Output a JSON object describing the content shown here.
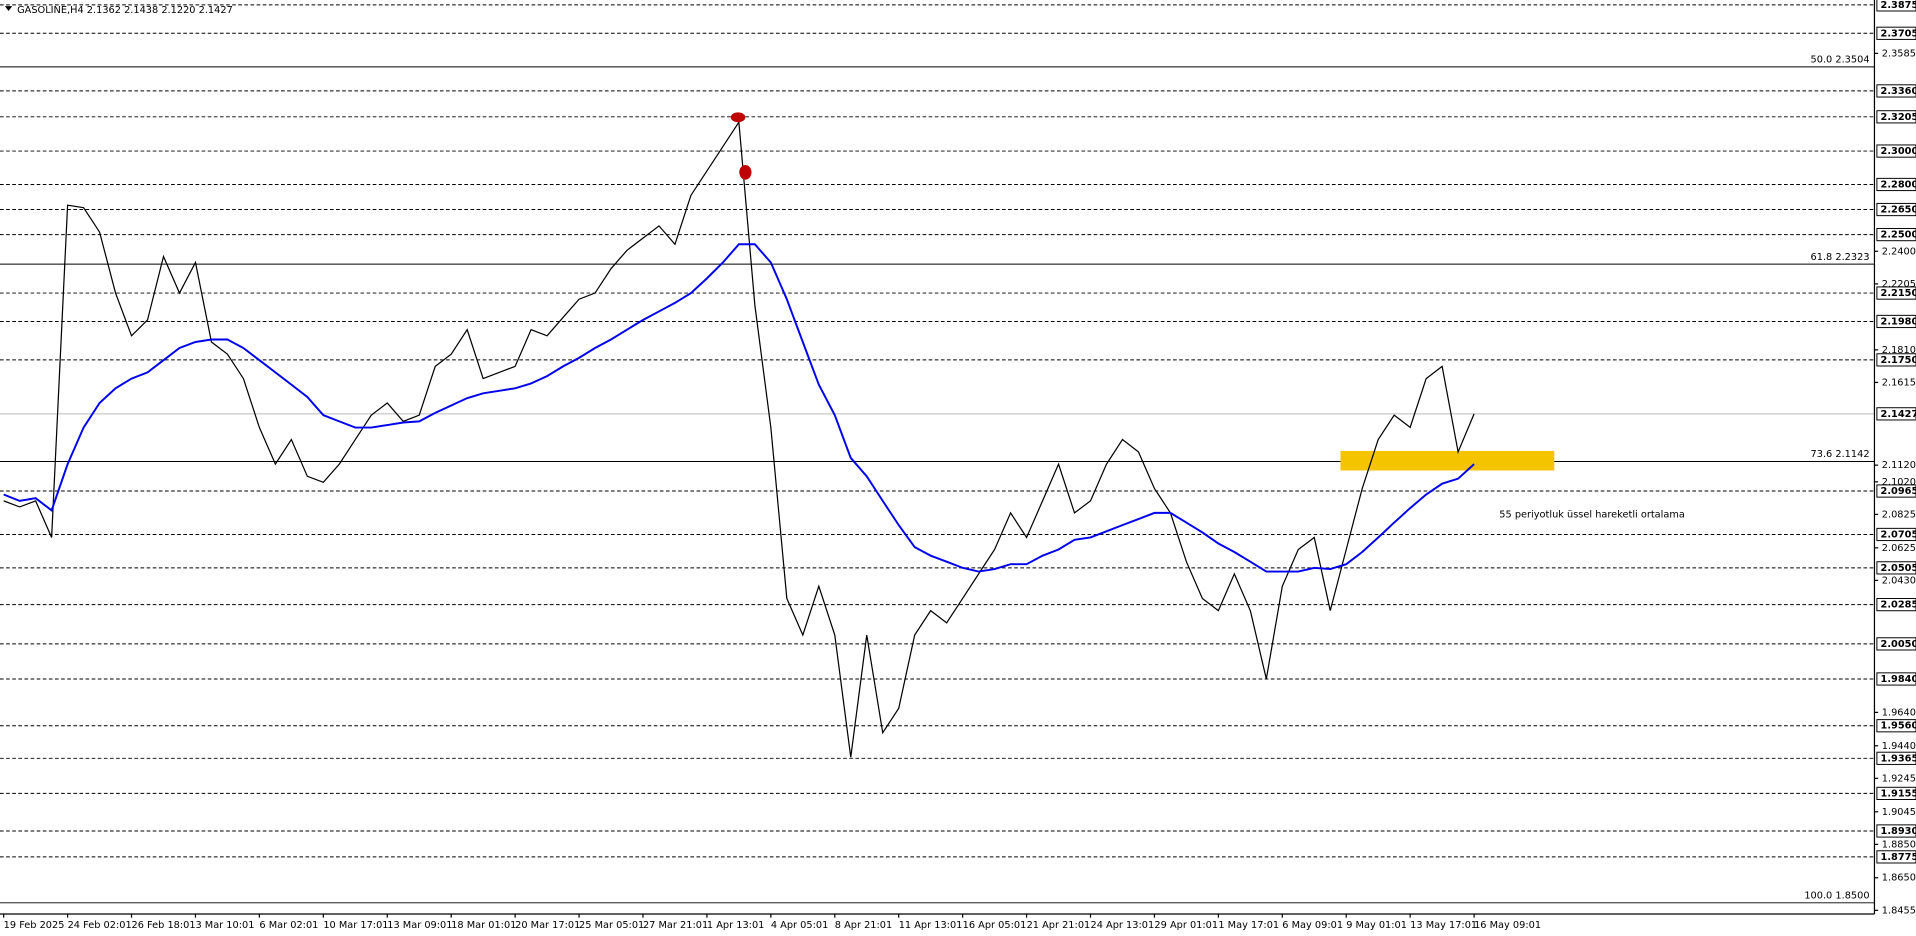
{
  "chart_data": {
    "type": "line",
    "title": "GASOLINE,H4  2.1362 2.1438 2.1220 2.1427",
    "categories": [
      "19 Feb 2025",
      null,
      null,
      null,
      "24 Feb 02:01",
      null,
      null,
      null,
      "26 Feb 18:01",
      null,
      null,
      null,
      "3 Mar 10:01",
      null,
      null,
      null,
      "6 Mar 02:01",
      null,
      null,
      null,
      "10 Mar 17:01",
      null,
      null,
      null,
      "13 Mar 09:01",
      null,
      null,
      null,
      "18 Mar 01:01",
      null,
      null,
      null,
      "20 Mar 17:01",
      null,
      null,
      null,
      "25 Mar 05:01",
      null,
      null,
      null,
      "27 Mar 21:01",
      null,
      null,
      null,
      "1 Apr 13:01",
      null,
      null,
      null,
      "4 Apr 05:01",
      null,
      null,
      null,
      "8 Apr 21:01",
      null,
      null,
      null,
      "11 Apr 13:01",
      null,
      null,
      null,
      "16 Apr 05:01",
      null,
      null,
      null,
      "21 Apr 21:01",
      null,
      null,
      null,
      "24 Apr 13:01",
      null,
      null,
      null,
      "29 Apr 01:01",
      null,
      null,
      null,
      "1 May 17:01",
      null,
      null,
      null,
      "6 May 09:01",
      null,
      null,
      null,
      "9 May 01:01",
      null,
      null,
      null,
      "13 May 17:01",
      null,
      null,
      null,
      "16 May 09:01"
    ],
    "series": [
      {
        "color": "#000000",
        "values": [
          2.0906,
          2.087,
          2.0906,
          2.0687,
          2.2676,
          2.2661,
          2.2515,
          2.215,
          2.1894,
          2.1989,
          2.2369,
          2.215,
          2.2333,
          2.1857,
          2.1784,
          2.1638,
          2.1345,
          2.1126,
          2.1273,
          2.1053,
          2.1017,
          2.1126,
          2.1273,
          2.1419,
          2.1492,
          2.1382,
          2.1419,
          2.1711,
          2.1784,
          2.1931,
          2.1638,
          2.1675,
          2.1711,
          2.1931,
          2.1894,
          2.2004,
          2.2113,
          2.215,
          2.2296,
          2.2406,
          2.2479,
          2.2552,
          2.2442,
          2.2735,
          2.2881,
          2.3027,
          2.3173,
          2.2077,
          2.1345,
          2.0322,
          2.0103,
          2.0395,
          2.0103,
          1.9372,
          2.0103,
          1.9518,
          1.9664,
          2.0103,
          2.0249,
          2.0176,
          2.0322,
          2.0469,
          2.0615,
          2.0834,
          2.0687,
          2.0906,
          2.1126,
          2.0834,
          2.0906,
          2.1126,
          2.1273,
          2.1199,
          2.098,
          2.0834,
          2.0542,
          2.0322,
          2.0249,
          2.0469,
          2.0249,
          1.984,
          2.0395,
          2.0615,
          2.0687,
          2.0249,
          2.0615,
          2.098,
          2.1273,
          2.1419,
          2.1346,
          2.1638,
          2.1711,
          2.1199,
          2.1427
        ]
      },
      {
        "name": "55 periyotluk üssel hareketli ortalama",
        "color": "#0000ee",
        "values": [
          2.0944,
          2.0906,
          2.0922,
          2.0849,
          2.1126,
          2.1345,
          2.1492,
          2.158,
          2.1638,
          2.1675,
          2.1748,
          2.1821,
          2.1857,
          2.1872,
          2.1872,
          2.1821,
          2.1748,
          2.1675,
          2.1602,
          2.1528,
          2.1419,
          2.1382,
          2.1345,
          2.1345,
          2.136,
          2.1375,
          2.1382,
          2.1433,
          2.1477,
          2.1521,
          2.155,
          2.1565,
          2.158,
          2.1609,
          2.1653,
          2.1711,
          2.1762,
          2.1821,
          2.1872,
          2.1931,
          2.1989,
          2.204,
          2.2091,
          2.215,
          2.2238,
          2.2333,
          2.2442,
          2.2442,
          2.2333,
          2.2113,
          2.1857,
          2.1602,
          2.1419,
          2.1163,
          2.1053,
          2.0906,
          2.0761,
          2.0629,
          2.0578,
          2.0542,
          2.0505,
          2.0483,
          2.0498,
          2.0527,
          2.0527,
          2.0578,
          2.0615,
          2.0673,
          2.0687,
          2.0724,
          2.0761,
          2.0797,
          2.0834,
          2.0834,
          2.0776,
          2.0717,
          2.0651,
          2.06,
          2.0542,
          2.0483,
          2.0483,
          2.0483,
          2.0505,
          2.0498,
          2.0527,
          2.06,
          2.0687,
          2.0776,
          2.0863,
          2.0944,
          2.1009,
          2.1039,
          2.1126
        ]
      }
    ],
    "ylim": [
      1.8455,
      2.3875
    ],
    "yticks": [
      {
        "value": 2.3585,
        "label": "2.3585"
      },
      {
        "value": 2.24,
        "label": "2.2400"
      },
      {
        "value": 2.2205,
        "label": "2.2205"
      },
      {
        "value": 2.181,
        "label": "2.1810"
      },
      {
        "value": 2.1615,
        "label": "2.1615"
      },
      {
        "value": 2.112,
        "label": "2.1120"
      },
      {
        "value": 2.102,
        "label": "2.1020"
      },
      {
        "value": 2.0825,
        "label": "2.0825"
      },
      {
        "value": 2.0625,
        "label": "2.0625"
      },
      {
        "value": 2.043,
        "label": "2.0430"
      },
      {
        "value": 1.964,
        "label": "1.9640"
      },
      {
        "value": 1.944,
        "label": "1.9440"
      },
      {
        "value": 1.9245,
        "label": "1.9245"
      },
      {
        "value": 1.9045,
        "label": "1.9045"
      },
      {
        "value": 1.885,
        "label": "1.8850"
      },
      {
        "value": 1.865,
        "label": "1.8650"
      },
      {
        "value": 1.8455,
        "label": "1.8455"
      }
    ],
    "levels": [
      {
        "value": 2.3875,
        "label": "2.3875"
      },
      {
        "value": 2.3705,
        "label": "2.3705"
      },
      {
        "value": 2.336,
        "label": "2.3360"
      },
      {
        "value": 2.3205,
        "label": "2.3205"
      },
      {
        "value": 2.3,
        "label": "2.3000"
      },
      {
        "value": 2.28,
        "label": "2.2800"
      },
      {
        "value": 2.265,
        "label": "2.2650"
      },
      {
        "value": 2.25,
        "label": "2.2500"
      },
      {
        "value": 2.215,
        "label": "2.2150"
      },
      {
        "value": 2.198,
        "label": "2.1980"
      },
      {
        "value": 2.175,
        "label": "2.1750"
      },
      {
        "value": 2.0965,
        "label": "2.0965"
      },
      {
        "value": 2.0705,
        "label": "2.0705"
      },
      {
        "value": 2.0505,
        "label": "2.0505"
      },
      {
        "value": 2.0285,
        "label": "2.0285"
      },
      {
        "value": 2.005,
        "label": "2.0050"
      },
      {
        "value": 1.984,
        "label": "1.9840"
      },
      {
        "value": 1.956,
        "label": "1.9560"
      },
      {
        "value": 1.9365,
        "label": "1.9365"
      },
      {
        "value": 1.9155,
        "label": "1.9155"
      },
      {
        "value": 1.893,
        "label": "1.8930"
      },
      {
        "value": 1.8775,
        "label": "1.8775"
      }
    ],
    "fib_lines": [
      {
        "value": 2.3504,
        "label": "50.0 2.3504"
      },
      {
        "value": 2.2323,
        "label": "61.8 2.2323"
      },
      {
        "value": 2.1142,
        "label": "73.6 2.1142"
      },
      {
        "value": 1.85,
        "label": "100.0 1.8500"
      }
    ],
    "current_price": {
      "value": 2.1427,
      "label": "2.1427"
    },
    "highlight_zone": {
      "low": 2.1088,
      "high": 2.1205,
      "color": "#f5c400"
    }
  }
}
